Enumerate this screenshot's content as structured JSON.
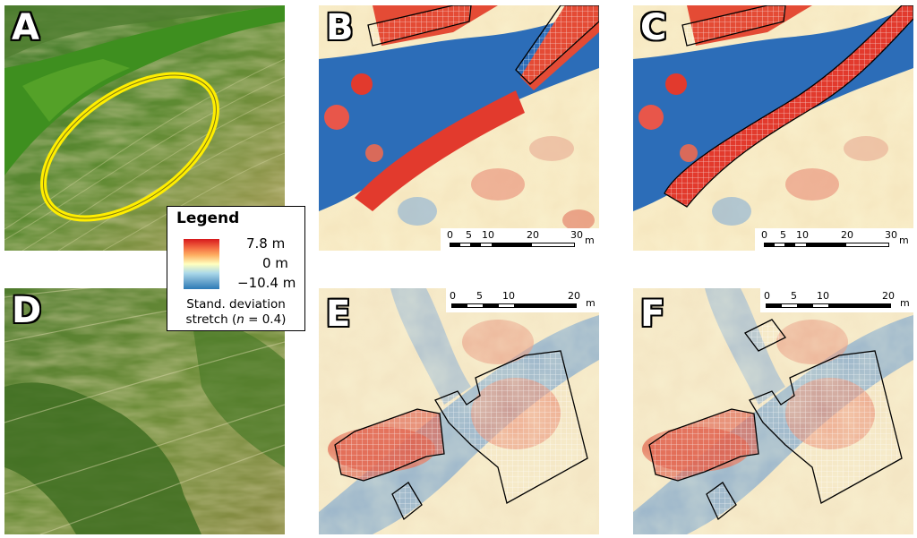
{
  "panels": {
    "A": {
      "letter": "A"
    },
    "B": {
      "letter": "B",
      "scale": {
        "ticks": [
          "0",
          "5",
          "10",
          "20",
          "30"
        ],
        "unit": "m"
      }
    },
    "C": {
      "letter": "C",
      "scale": {
        "ticks": [
          "0",
          "5",
          "10",
          "20",
          "30"
        ],
        "unit": "m"
      }
    },
    "D": {
      "letter": "D"
    },
    "E": {
      "letter": "E",
      "scale": {
        "ticks": [
          "0",
          "5",
          "10",
          "20"
        ],
        "unit": "m"
      }
    },
    "F": {
      "letter": "F",
      "scale": {
        "ticks": [
          "0",
          "5",
          "10",
          "20"
        ],
        "unit": "m"
      }
    }
  },
  "legend": {
    "title": "Legend",
    "max_label": "7.8 m",
    "mid_label": "0 m",
    "min_label": "−10.4 m",
    "stretch_line1": "Stand. deviation",
    "stretch_line2_prefix": "stretch (",
    "stretch_line2_var": "n",
    "stretch_line2_suffix": " = 0.4)"
  },
  "colors": {
    "high": "#d7191c",
    "mid": "#ffffbf",
    "low": "#2c7bb6",
    "highlight_ellipse": "#ffee00"
  }
}
